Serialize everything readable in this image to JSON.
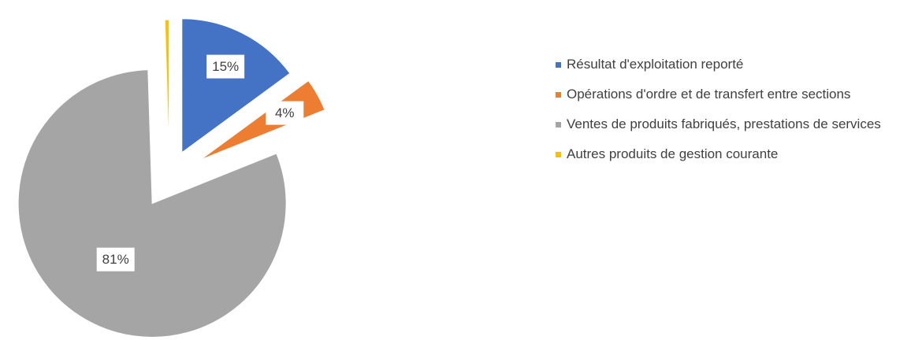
{
  "chart_data": {
    "type": "pie",
    "categories": [
      "Résultat d'exploitation reporté",
      "Opérations d'ordre et de transfert entre sections",
      "Ventes de produits fabriqués, prestations de services",
      "Autres produits de gestion courante"
    ],
    "values": [
      15,
      4,
      81,
      0.5
    ],
    "value_labels": [
      "15%",
      "4%",
      "81%",
      null
    ],
    "colors": [
      "#4472c4",
      "#ed7d31",
      "#a5a5a5",
      "#ffc000"
    ],
    "legend": "right"
  }
}
